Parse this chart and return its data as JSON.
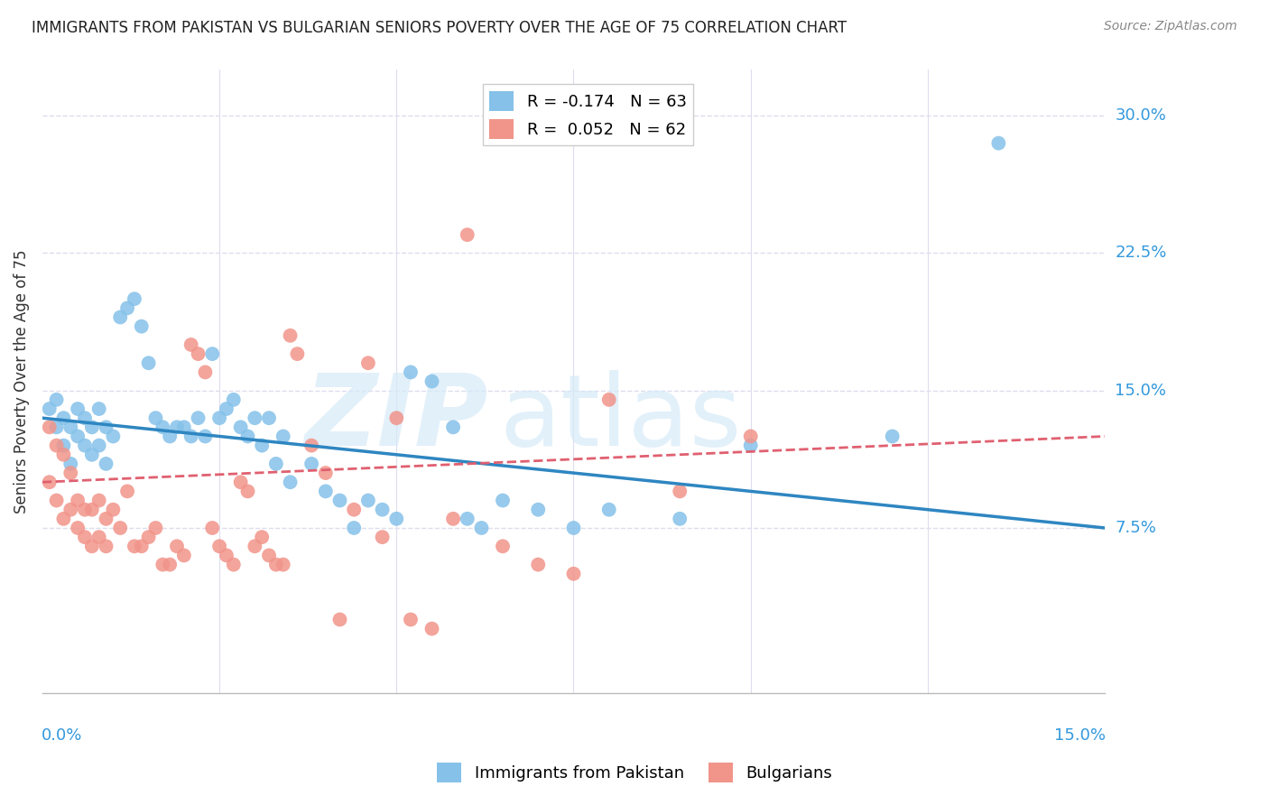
{
  "title": "IMMIGRANTS FROM PAKISTAN VS BULGARIAN SENIORS POVERTY OVER THE AGE OF 75 CORRELATION CHART",
  "source": "Source: ZipAtlas.com",
  "ylabel": "Seniors Poverty Over the Age of 75",
  "ytick_labels": [
    "7.5%",
    "15.0%",
    "22.5%",
    "30.0%"
  ],
  "ytick_values": [
    0.075,
    0.15,
    0.225,
    0.3
  ],
  "xlim": [
    0.0,
    0.15
  ],
  "ylim": [
    -0.015,
    0.325
  ],
  "background_color": "#ffffff",
  "grid_color": "#ddddee",
  "pakistan_color": "#85C1E9",
  "bulgarian_color": "#F1948A",
  "pakistan_line_color": "#2E86C1",
  "bulgarian_line_color": "#E06070",
  "legend_pakistan_label": "R = -0.174   N = 63",
  "legend_bulgarian_label": "R =  0.052   N = 62",
  "pakistan_scatter_x": [
    0.001,
    0.002,
    0.002,
    0.003,
    0.003,
    0.004,
    0.004,
    0.005,
    0.005,
    0.006,
    0.006,
    0.007,
    0.007,
    0.008,
    0.008,
    0.009,
    0.009,
    0.01,
    0.011,
    0.012,
    0.013,
    0.014,
    0.015,
    0.016,
    0.017,
    0.018,
    0.019,
    0.02,
    0.021,
    0.022,
    0.023,
    0.024,
    0.025,
    0.026,
    0.027,
    0.028,
    0.029,
    0.03,
    0.031,
    0.032,
    0.033,
    0.034,
    0.035,
    0.038,
    0.04,
    0.042,
    0.044,
    0.046,
    0.048,
    0.05,
    0.052,
    0.055,
    0.058,
    0.06,
    0.062,
    0.065,
    0.07,
    0.075,
    0.08,
    0.09,
    0.1,
    0.12,
    0.135
  ],
  "pakistan_scatter_y": [
    0.14,
    0.13,
    0.145,
    0.12,
    0.135,
    0.11,
    0.13,
    0.125,
    0.14,
    0.12,
    0.135,
    0.115,
    0.13,
    0.12,
    0.14,
    0.11,
    0.13,
    0.125,
    0.19,
    0.195,
    0.2,
    0.185,
    0.165,
    0.135,
    0.13,
    0.125,
    0.13,
    0.13,
    0.125,
    0.135,
    0.125,
    0.17,
    0.135,
    0.14,
    0.145,
    0.13,
    0.125,
    0.135,
    0.12,
    0.135,
    0.11,
    0.125,
    0.1,
    0.11,
    0.095,
    0.09,
    0.075,
    0.09,
    0.085,
    0.08,
    0.16,
    0.155,
    0.13,
    0.08,
    0.075,
    0.09,
    0.085,
    0.075,
    0.085,
    0.08,
    0.12,
    0.125,
    0.285
  ],
  "bulgarian_scatter_x": [
    0.001,
    0.001,
    0.002,
    0.002,
    0.003,
    0.003,
    0.004,
    0.004,
    0.005,
    0.005,
    0.006,
    0.006,
    0.007,
    0.007,
    0.008,
    0.008,
    0.009,
    0.009,
    0.01,
    0.011,
    0.012,
    0.013,
    0.014,
    0.015,
    0.016,
    0.017,
    0.018,
    0.019,
    0.02,
    0.021,
    0.022,
    0.023,
    0.024,
    0.025,
    0.026,
    0.027,
    0.028,
    0.029,
    0.03,
    0.031,
    0.032,
    0.033,
    0.034,
    0.035,
    0.036,
    0.038,
    0.04,
    0.042,
    0.044,
    0.046,
    0.048,
    0.05,
    0.052,
    0.055,
    0.058,
    0.06,
    0.065,
    0.07,
    0.075,
    0.08,
    0.09,
    0.1
  ],
  "bulgarian_scatter_y": [
    0.13,
    0.1,
    0.12,
    0.09,
    0.115,
    0.08,
    0.105,
    0.085,
    0.09,
    0.075,
    0.085,
    0.07,
    0.085,
    0.065,
    0.09,
    0.07,
    0.08,
    0.065,
    0.085,
    0.075,
    0.095,
    0.065,
    0.065,
    0.07,
    0.075,
    0.055,
    0.055,
    0.065,
    0.06,
    0.175,
    0.17,
    0.16,
    0.075,
    0.065,
    0.06,
    0.055,
    0.1,
    0.095,
    0.065,
    0.07,
    0.06,
    0.055,
    0.055,
    0.18,
    0.17,
    0.12,
    0.105,
    0.025,
    0.085,
    0.165,
    0.07,
    0.135,
    0.025,
    0.02,
    0.08,
    0.235,
    0.065,
    0.055,
    0.05,
    0.145,
    0.095,
    0.125
  ]
}
